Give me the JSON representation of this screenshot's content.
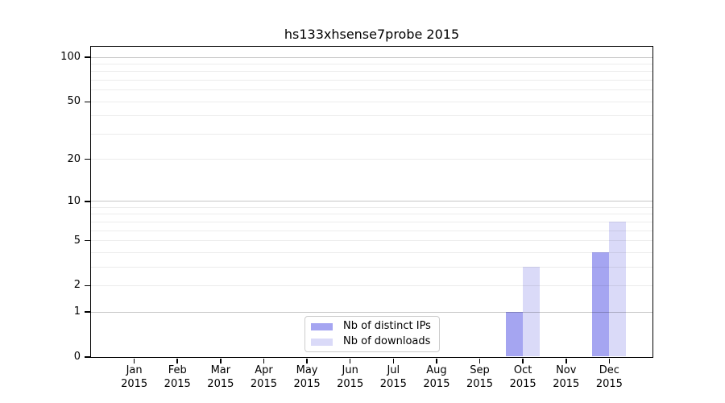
{
  "chart_data": {
    "type": "bar",
    "title": "hs133xhsense7probe 2015",
    "x_months": [
      "Jan",
      "Feb",
      "Mar",
      "Apr",
      "May",
      "Jun",
      "Jul",
      "Aug",
      "Sep",
      "Oct",
      "Nov",
      "Dec"
    ],
    "x_year": "2015",
    "series": [
      {
        "key": "distinct-ips",
        "name": "Nb of distinct IPs",
        "color": "#a5a5f1",
        "values": [
          0,
          0,
          0,
          0,
          0,
          0,
          0,
          0,
          0,
          1,
          0,
          4
        ]
      },
      {
        "key": "downloads",
        "name": "Nb of downloads",
        "color": "#dadaf8",
        "values": [
          0,
          0,
          0,
          0,
          0,
          0,
          0,
          0,
          0,
          3,
          0,
          7
        ]
      }
    ],
    "y_scale": "log1p",
    "ylim": [
      0,
      118
    ],
    "y_ticks": [
      0,
      1,
      2,
      5,
      10,
      20,
      50,
      100
    ],
    "y_major_gridlines": [
      1,
      10,
      100
    ],
    "y_minor_gridlines": [
      2,
      3,
      4,
      5,
      6,
      7,
      8,
      9,
      20,
      30,
      40,
      50,
      60,
      70,
      80,
      90
    ],
    "legend_position": "lower center",
    "grid_on": true,
    "colors": {
      "grid_major": "#c7c7c7",
      "grid_minor": "#ededed",
      "spine": "#000000",
      "background": "#ffffff"
    }
  }
}
